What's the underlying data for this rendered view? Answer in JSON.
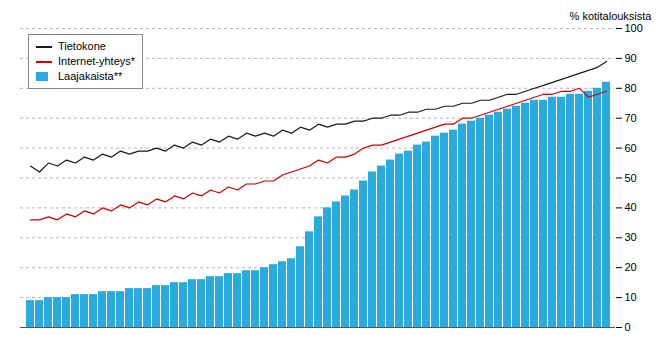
{
  "chart_data": {
    "type": "bar",
    "ylabel": "% kotitalouksista",
    "categories": [
      null,
      null,
      null,
      null,
      null,
      null,
      null,
      null,
      null,
      null,
      null,
      null,
      null,
      null,
      null,
      null,
      null,
      null,
      null,
      null,
      null,
      null,
      null,
      null,
      null,
      null,
      null,
      null,
      null,
      null,
      null,
      null,
      null,
      null,
      null,
      null,
      null,
      null,
      null,
      null,
      null,
      null,
      null,
      null,
      null,
      null,
      null,
      null,
      null,
      null,
      null,
      null,
      null,
      null,
      null,
      null,
      null,
      null,
      null,
      null,
      null,
      null,
      null,
      null,
      null
    ],
    "series": [
      {
        "name": "Tietokone",
        "type": "line",
        "color": "#1a1a1a",
        "values": [
          54,
          52,
          55,
          54,
          56,
          55,
          57,
          56,
          58,
          57,
          59,
          58,
          59,
          59,
          60,
          59,
          61,
          60,
          62,
          61,
          63,
          62,
          64,
          63,
          65,
          64,
          65,
          64,
          66,
          65,
          67,
          66,
          68,
          67,
          68,
          68,
          69,
          69,
          70,
          70,
          71,
          71,
          72,
          72,
          73,
          73,
          74,
          74,
          75,
          75,
          76,
          76,
          77,
          78,
          78,
          79,
          80,
          81,
          82,
          83,
          84,
          85,
          86,
          87,
          89
        ]
      },
      {
        "name": "Internet-yhteys*",
        "type": "line",
        "color": "#cc0000",
        "values": [
          36,
          36,
          37,
          36,
          38,
          37,
          39,
          38,
          40,
          39,
          41,
          40,
          42,
          41,
          43,
          42,
          44,
          43,
          45,
          44,
          46,
          45,
          47,
          46,
          48,
          48,
          49,
          49,
          51,
          52,
          53,
          54,
          56,
          55,
          57,
          57,
          58,
          60,
          61,
          61,
          62,
          63,
          64,
          65,
          66,
          67,
          68,
          68,
          70,
          70,
          71,
          72,
          73,
          74,
          75,
          76,
          77,
          78,
          78,
          79,
          79,
          80,
          77,
          78,
          79
        ]
      },
      {
        "name": "Laajakaista**",
        "type": "bar",
        "color": "#29abe2",
        "values": [
          9,
          9,
          10,
          10,
          10,
          11,
          11,
          11,
          12,
          12,
          12,
          13,
          13,
          13,
          14,
          14,
          15,
          15,
          16,
          16,
          17,
          17,
          18,
          18,
          19,
          19,
          20,
          21,
          22,
          23,
          27,
          32,
          37,
          40,
          42,
          44,
          46,
          49,
          52,
          54,
          56,
          58,
          59,
          61,
          62,
          64,
          65,
          66,
          68,
          69,
          70,
          71,
          72,
          73,
          74,
          75,
          76,
          76,
          77,
          77,
          78,
          78,
          79,
          80,
          82
        ]
      }
    ],
    "ylim": [
      0,
      100
    ],
    "yticks": [
      0,
      10,
      20,
      30,
      40,
      50,
      60,
      70,
      80,
      90,
      100
    ],
    "grid": true,
    "legend": "upper left",
    "tick_labels": "y"
  }
}
